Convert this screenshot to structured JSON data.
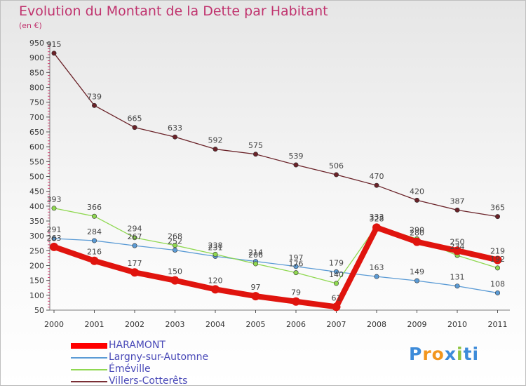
{
  "title": "Evolution du Montant de la Dette par Habitant",
  "unit": "(en €)",
  "logo": "Proxiti",
  "chart_data": {
    "type": "line",
    "x": [
      "2000",
      "2001",
      "2002",
      "2003",
      "2004",
      "2005",
      "2006",
      "2007",
      "2008",
      "2009",
      "2010",
      "2011"
    ],
    "ylim": [
      50,
      950
    ],
    "yticks": [
      50,
      100,
      150,
      200,
      250,
      300,
      350,
      400,
      450,
      500,
      550,
      600,
      650,
      700,
      750,
      800,
      850,
      900,
      950
    ],
    "grid": false,
    "legend_position": "bottom-left",
    "series": [
      {
        "name": "HARAMONT",
        "color": "#ff0000",
        "values": [
          263,
          216,
          177,
          150,
          120,
          97,
          79,
          61,
          328,
          280,
          250,
          219
        ]
      },
      {
        "name": "Largny-sur-Automne",
        "color": "#5b9bd5",
        "values": [
          291,
          284,
          267,
          252,
          231,
          214,
          197,
          179,
          163,
          149,
          131,
          108
        ]
      },
      {
        "name": "Éméville",
        "color": "#8fd850",
        "values": [
          393,
          366,
          294,
          268,
          238,
          206,
          176,
          140,
          333,
          290,
          234,
          192
        ]
      },
      {
        "name": "Villers-Cotterêts",
        "color": "#7a2f35",
        "values": [
          915,
          739,
          665,
          633,
          592,
          575,
          539,
          506,
          470,
          420,
          387,
          365
        ]
      }
    ]
  }
}
